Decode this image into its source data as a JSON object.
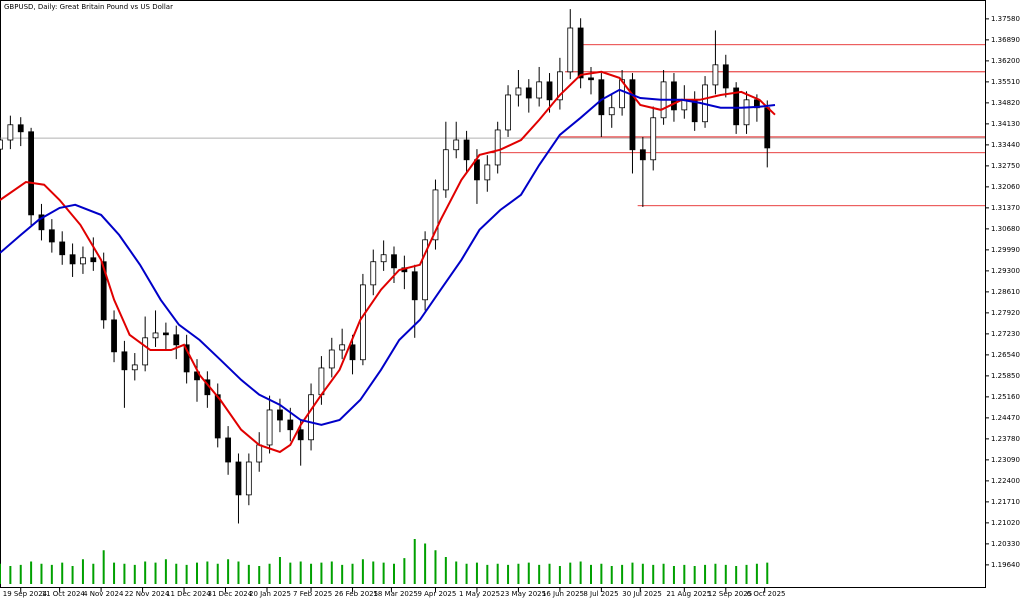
{
  "chart_data": {
    "type": "candlestick",
    "title": "GBPUSD, Daily:  Great Britain Pound vs US Dollar",
    "xlim": [
      0,
      380
    ],
    "ylim": [
      1.1888,
      1.382
    ],
    "yticks": [
      {
        "value": 1.3758,
        "label": "1.37580"
      },
      {
        "value": 1.3689,
        "label": "1.36890"
      },
      {
        "value": 1.362,
        "label": "1.36200"
      },
      {
        "value": 1.3551,
        "label": "1.35510"
      },
      {
        "value": 1.3482,
        "label": "1.34820"
      },
      {
        "value": 1.3413,
        "label": "1.34130"
      },
      {
        "value": 1.3344,
        "label": "1.33440"
      },
      {
        "value": 1.3275,
        "label": "1.32750"
      },
      {
        "value": 1.3206,
        "label": "1.32060"
      },
      {
        "value": 1.3137,
        "label": "1.31370"
      },
      {
        "value": 1.3068,
        "label": "1.30680"
      },
      {
        "value": 1.2999,
        "label": "1.29990"
      },
      {
        "value": 1.293,
        "label": "1.29300"
      },
      {
        "value": 1.2861,
        "label": "1.28610"
      },
      {
        "value": 1.2792,
        "label": "1.27920"
      },
      {
        "value": 1.2723,
        "label": "1.27230"
      },
      {
        "value": 1.2654,
        "label": "1.26540"
      },
      {
        "value": 1.2585,
        "label": "1.25850"
      },
      {
        "value": 1.2516,
        "label": "1.25160"
      },
      {
        "value": 1.2447,
        "label": "1.24470"
      },
      {
        "value": 1.2378,
        "label": "1.23780"
      },
      {
        "value": 1.2309,
        "label": "1.23090"
      },
      {
        "value": 1.224,
        "label": "1.22400"
      },
      {
        "value": 1.2171,
        "label": "1.21710"
      },
      {
        "value": 1.2102,
        "label": "1.21020"
      },
      {
        "value": 1.2033,
        "label": "1.20330"
      },
      {
        "value": 1.1964,
        "label": "1.19640"
      }
    ],
    "xticks": [
      {
        "value": 8,
        "label": "19 Sep 2024"
      },
      {
        "value": 23,
        "label": "11 Oct 2024"
      },
      {
        "value": 39,
        "label": "4 Nov 2024"
      },
      {
        "value": 55,
        "label": "22 Nov 2024"
      },
      {
        "value": 71,
        "label": "11 Dec 2024"
      },
      {
        "value": 87,
        "label": "31 Dec 2024"
      },
      {
        "value": 103,
        "label": "20 Jan 2025"
      },
      {
        "value": 120,
        "label": "7 Feb 2025"
      },
      {
        "value": 136,
        "label": "26 Feb 2025"
      },
      {
        "value": 151,
        "label": "18 Mar 2025"
      },
      {
        "value": 168,
        "label": "9 Apr 2025"
      },
      {
        "value": 184,
        "label": "1 May 2025"
      },
      {
        "value": 200,
        "label": "23 May 2025"
      },
      {
        "value": 216,
        "label": "16 Jun 2025"
      },
      {
        "value": 232,
        "label": "8 Jul 2025"
      },
      {
        "value": 247,
        "label": "30 Jul 2025"
      },
      {
        "value": 264,
        "label": "21 Aug 2025"
      },
      {
        "value": 280,
        "label": "12 Sep 2025"
      },
      {
        "value": 295,
        "label": "6 Oct 2025"
      }
    ],
    "x": [
      0,
      4,
      8,
      12,
      16,
      20,
      24,
      28,
      32,
      36,
      40,
      44,
      48,
      52,
      56,
      60,
      64,
      68,
      72,
      76,
      80,
      84,
      88,
      92,
      96,
      100,
      104,
      108,
      112,
      116,
      120,
      124,
      128,
      132,
      136,
      140,
      144,
      148,
      152,
      156,
      160,
      164,
      168,
      172,
      176,
      180,
      184,
      188,
      192,
      196,
      200,
      204,
      208,
      212,
      216,
      220,
      224,
      228,
      232,
      236,
      240,
      244,
      248,
      252,
      256,
      260,
      264,
      268,
      272,
      276,
      280,
      284,
      288,
      292,
      296
    ],
    "open": [
      1.333,
      1.336,
      1.341,
      1.3387,
      1.3114,
      1.3065,
      1.3025,
      1.2983,
      1.2953,
      1.2973,
      1.296,
      1.2769,
      1.2664,
      1.2605,
      1.2621,
      1.271,
      1.2726,
      1.272,
      1.2687,
      1.2598,
      1.2572,
      1.2523,
      1.2381,
      1.2302,
      1.2194,
      1.2302,
      1.2358,
      1.2473,
      1.244,
      1.2408,
      1.2375,
      1.2523,
      1.2611,
      1.267,
      1.2687,
      1.2638,
      1.2884,
      1.296,
      1.2983,
      1.294,
      1.2927,
      1.2835,
      1.3032,
      1.3196,
      1.3328,
      1.336,
      1.3295,
      1.3229,
      1.3278,
      1.3393,
      1.3508,
      1.3531,
      1.3498,
      1.3551,
      1.3492,
      1.3584,
      1.3728,
      1.3564,
      1.3558,
      1.3443,
      1.3466,
      1.3558,
      1.3328,
      1.3295,
      1.3433,
      1.3551,
      1.3459,
      1.3492,
      1.342,
      1.3541,
      1.3607,
      1.3531,
      1.341,
      1.3492,
      1.3466
    ],
    "high": [
      1.34,
      1.344,
      1.3435,
      1.34,
      1.315,
      1.31,
      1.306,
      1.302,
      1.301,
      1.304,
      1.299,
      1.28,
      1.27,
      1.266,
      1.278,
      1.28,
      1.276,
      1.275,
      1.272,
      1.264,
      1.26,
      1.256,
      1.242,
      1.233,
      1.233,
      1.24,
      1.252,
      1.251,
      1.248,
      1.244,
      1.256,
      1.265,
      1.271,
      1.274,
      1.272,
      1.292,
      1.3,
      1.303,
      1.301,
      1.298,
      1.295,
      1.306,
      1.323,
      1.342,
      1.342,
      1.339,
      1.333,
      1.331,
      1.342,
      1.354,
      1.359,
      1.356,
      1.36,
      1.358,
      1.363,
      1.379,
      1.376,
      1.36,
      1.358,
      1.351,
      1.359,
      1.358,
      1.337,
      1.347,
      1.359,
      1.358,
      1.354,
      1.352,
      1.357,
      1.372,
      1.364,
      1.355,
      1.352,
      1.351,
      1.349
    ],
    "low": [
      1.329,
      1.333,
      1.334,
      1.308,
      1.303,
      1.299,
      1.295,
      1.291,
      1.292,
      1.293,
      1.274,
      1.263,
      1.248,
      1.257,
      1.26,
      1.268,
      1.267,
      1.264,
      1.256,
      1.25,
      1.248,
      1.235,
      1.226,
      1.21,
      1.216,
      1.227,
      1.233,
      1.24,
      1.237,
      1.229,
      1.234,
      1.249,
      1.258,
      1.264,
      1.259,
      1.262,
      1.285,
      1.293,
      1.289,
      1.287,
      1.271,
      1.28,
      1.3,
      1.317,
      1.33,
      1.325,
      1.315,
      1.319,
      1.325,
      1.337,
      1.347,
      1.345,
      1.347,
      1.345,
      1.346,
      1.356,
      1.353,
      1.351,
      1.337,
      1.34,
      1.344,
      1.325,
      1.314,
      1.326,
      1.341,
      1.342,
      1.343,
      1.339,
      1.34,
      1.351,
      1.35,
      1.338,
      1.338,
      1.342,
      1.327
    ],
    "close": [
      1.336,
      1.341,
      1.3387,
      1.3114,
      1.3065,
      1.3025,
      1.2983,
      1.2953,
      1.2973,
      1.296,
      1.2769,
      1.2664,
      1.2605,
      1.2621,
      1.271,
      1.2726,
      1.272,
      1.2687,
      1.2598,
      1.2572,
      1.2523,
      1.2381,
      1.2302,
      1.2194,
      1.2302,
      1.2358,
      1.2473,
      1.244,
      1.2408,
      1.2375,
      1.2523,
      1.2611,
      1.267,
      1.2687,
      1.2638,
      1.2884,
      1.296,
      1.2983,
      1.294,
      1.2927,
      1.2835,
      1.3032,
      1.3196,
      1.3328,
      1.336,
      1.3295,
      1.3229,
      1.3278,
      1.3393,
      1.3508,
      1.3531,
      1.3498,
      1.3551,
      1.3492,
      1.3584,
      1.3728,
      1.3564,
      1.3558,
      1.3443,
      1.3466,
      1.3558,
      1.3328,
      1.3295,
      1.3433,
      1.3551,
      1.3459,
      1.3492,
      1.342,
      1.3541,
      1.3607,
      1.3531,
      1.341,
      1.3492,
      1.3466,
      1.3334
    ],
    "volume": [
      18,
      16,
      17,
      20,
      18,
      17,
      19,
      16,
      22,
      18,
      30,
      19,
      18,
      17,
      20,
      19,
      22,
      18,
      17,
      19,
      20,
      18,
      22,
      20,
      17,
      16,
      18,
      24,
      19,
      20,
      18,
      19,
      20,
      17,
      18,
      22,
      20,
      19,
      18,
      23,
      40,
      36,
      30,
      24,
      20,
      18,
      19,
      17,
      18,
      17,
      18,
      19,
      17,
      18,
      16,
      19,
      20,
      17,
      18,
      16,
      17,
      19,
      18,
      17,
      18,
      16,
      17,
      16,
      17,
      18,
      17,
      16,
      17,
      18,
      19
    ],
    "volume_color": "#00a000",
    "lines": [
      {
        "color": "#e00000",
        "x": [
          0,
          10,
          17,
          23,
          31,
          39,
          44,
          50,
          58,
          66,
          71,
          77,
          85,
          93,
          100,
          108,
          112,
          116,
          124,
          131,
          139,
          147,
          154,
          162,
          170,
          178,
          185,
          193,
          201,
          208,
          216,
          224,
          232,
          239,
          247,
          255,
          263,
          270,
          278,
          286,
          293,
          299
        ],
        "values": [
          1.3163,
          1.3222,
          1.3213,
          1.3163,
          1.3081,
          1.2966,
          1.2835,
          1.272,
          1.267,
          1.267,
          1.2687,
          1.2588,
          1.2506,
          1.2408,
          1.2358,
          1.2335,
          1.2358,
          1.2424,
          1.2523,
          1.2605,
          1.2769,
          1.2868,
          1.2933,
          1.295,
          1.3098,
          1.3229,
          1.3311,
          1.3328,
          1.336,
          1.3426,
          1.3508,
          1.3574,
          1.3584,
          1.3564,
          1.3475,
          1.3459,
          1.3492,
          1.3492,
          1.3508,
          1.3518,
          1.3492,
          1.3443
        ]
      },
      {
        "color": "#0000c8",
        "x": [
          0,
          8,
          15,
          23,
          29,
          39,
          46,
          54,
          62,
          69,
          77,
          85,
          93,
          100,
          108,
          116,
          124,
          131,
          139,
          147,
          154,
          162,
          170,
          178,
          185,
          193,
          201,
          208,
          216,
          224,
          232,
          239,
          247,
          255,
          263,
          270,
          278,
          286,
          293,
          299
        ],
        "values": [
          1.2989,
          1.3048,
          1.3098,
          1.3137,
          1.3147,
          1.3114,
          1.3048,
          1.295,
          1.2835,
          1.2753,
          1.2703,
          1.2638,
          1.2572,
          1.2523,
          1.249,
          1.244,
          1.2424,
          1.244,
          1.2506,
          1.2605,
          1.2703,
          1.2769,
          1.2868,
          1.2966,
          1.3065,
          1.313,
          1.318,
          1.3278,
          1.3377,
          1.3433,
          1.3492,
          1.3525,
          1.3498,
          1.3492,
          1.3492,
          1.3482,
          1.3466,
          1.3466,
          1.3469,
          1.3475
        ]
      }
    ],
    "levels": [
      {
        "value": 1.3673,
        "from": 224
      },
      {
        "value": 1.3584,
        "from": 218
      },
      {
        "value": 1.337,
        "from": 216
      },
      {
        "value": 1.3318,
        "from": 189
      },
      {
        "value": 1.3144,
        "from": 246
      }
    ],
    "level_color": "#e00000",
    "last_price": 1.3366,
    "grid": false
  }
}
